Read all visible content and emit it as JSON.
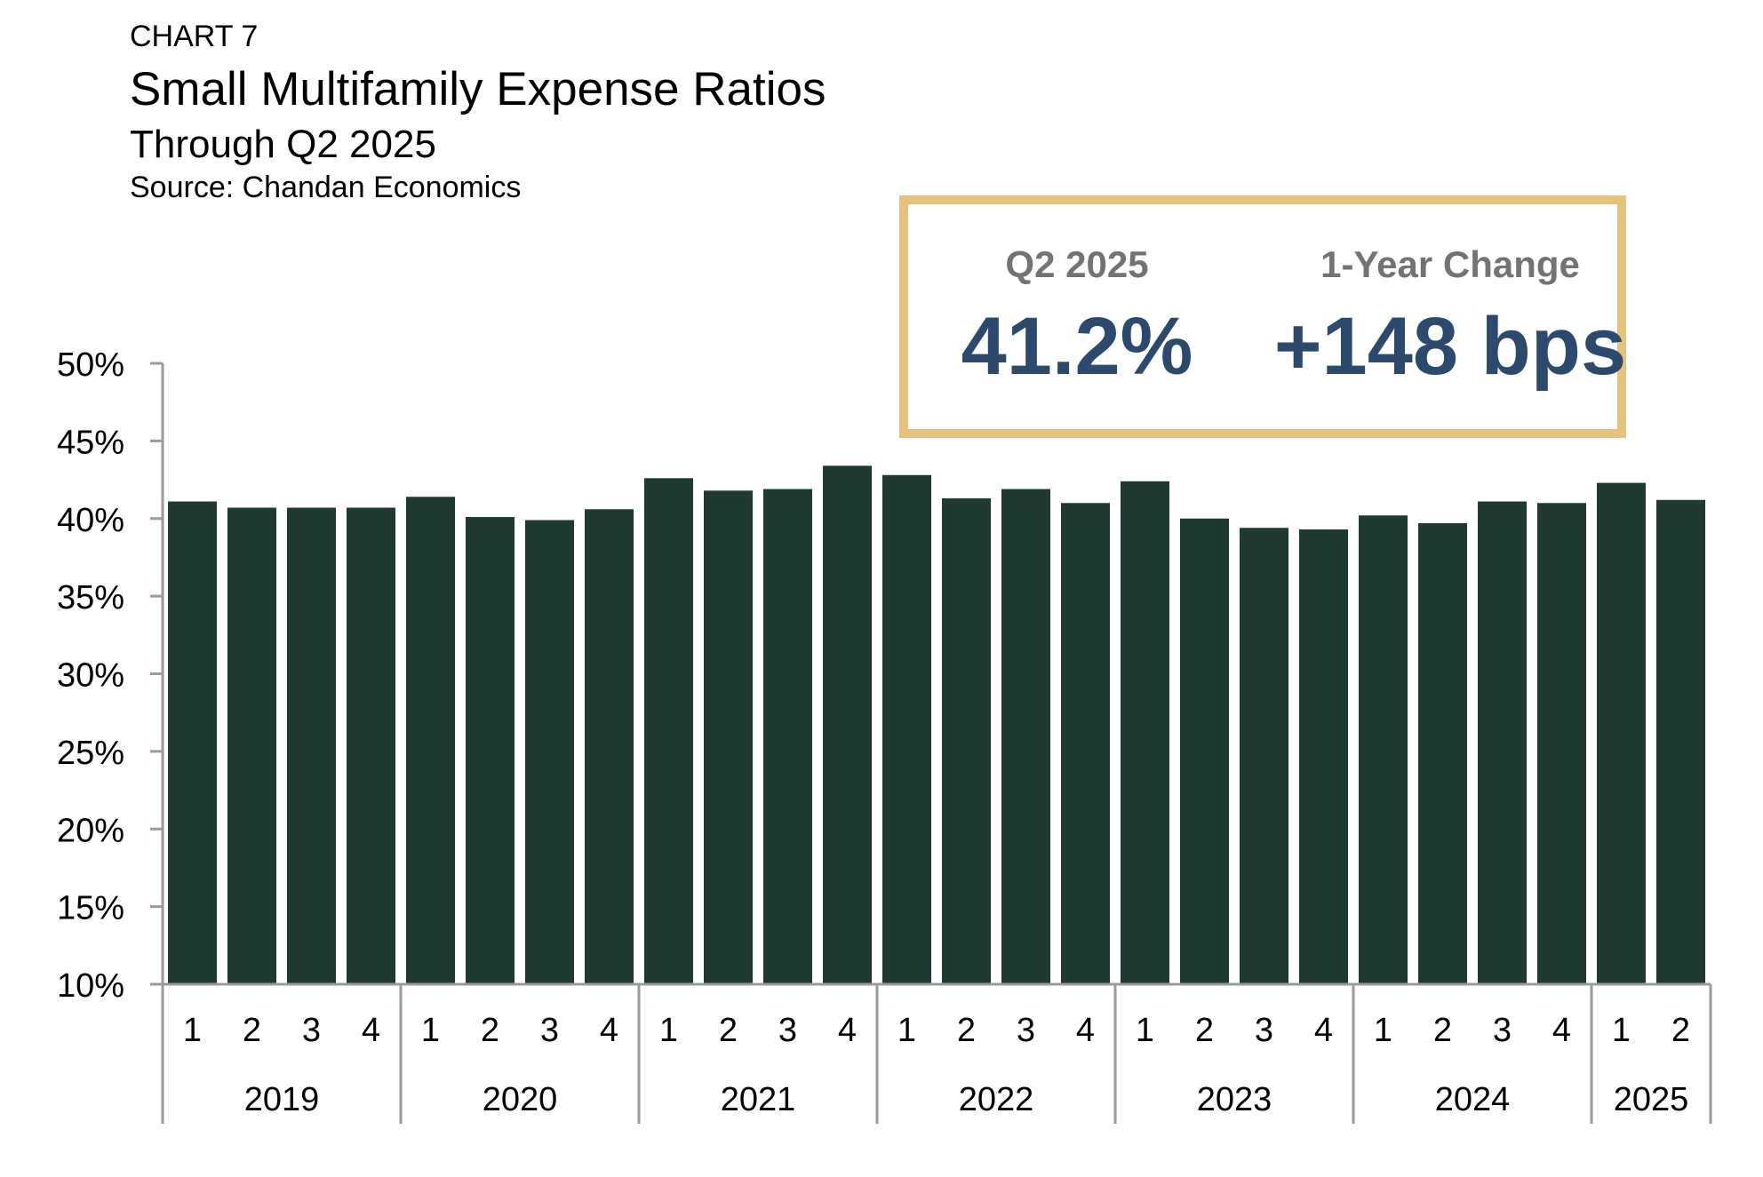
{
  "header": {
    "label": "CHART 7",
    "title": "Small Multifamily Expense Ratios",
    "subtitle": "Through Q2 2025",
    "source": "Source: Chandan Economics"
  },
  "callout": {
    "left_label": "Q2 2025",
    "left_value": "41.2%",
    "right_label": "1-Year Change",
    "right_value": "+148 bps"
  },
  "colors": {
    "bar": "#1e3a31",
    "axis": "#9a9a9a",
    "callout_border": "#e6c27a",
    "callout_value": "#2b4a6e",
    "callout_label": "#737373"
  },
  "chart_data": {
    "type": "bar",
    "ylim": [
      10,
      50
    ],
    "yticks": [
      "10%",
      "15%",
      "20%",
      "25%",
      "30%",
      "35%",
      "40%",
      "45%",
      "50%"
    ],
    "ytick_values": [
      10,
      15,
      20,
      25,
      30,
      35,
      40,
      45,
      50
    ],
    "grid": false,
    "legend": "none",
    "year_groups": [
      {
        "year": "2019",
        "quarters": [
          "1",
          "2",
          "3",
          "4"
        ],
        "values": [
          41.1,
          40.7,
          40.7,
          40.7
        ]
      },
      {
        "year": "2020",
        "quarters": [
          "1",
          "2",
          "3",
          "4"
        ],
        "values": [
          41.4,
          40.1,
          39.9,
          40.6
        ]
      },
      {
        "year": "2021",
        "quarters": [
          "1",
          "2",
          "3",
          "4"
        ],
        "values": [
          42.6,
          41.8,
          41.9,
          43.4
        ]
      },
      {
        "year": "2022",
        "quarters": [
          "1",
          "2",
          "3",
          "4"
        ],
        "values": [
          42.8,
          41.3,
          41.9,
          41.0
        ]
      },
      {
        "year": "2023",
        "quarters": [
          "1",
          "2",
          "3",
          "4"
        ],
        "values": [
          42.4,
          40.0,
          39.4,
          39.3
        ]
      },
      {
        "year": "2024",
        "quarters": [
          "1",
          "2",
          "3",
          "4"
        ],
        "values": [
          40.2,
          39.7,
          41.1,
          41.0
        ]
      },
      {
        "year": "2025",
        "quarters": [
          "1",
          "2"
        ],
        "values": [
          42.3,
          41.2
        ]
      }
    ]
  }
}
